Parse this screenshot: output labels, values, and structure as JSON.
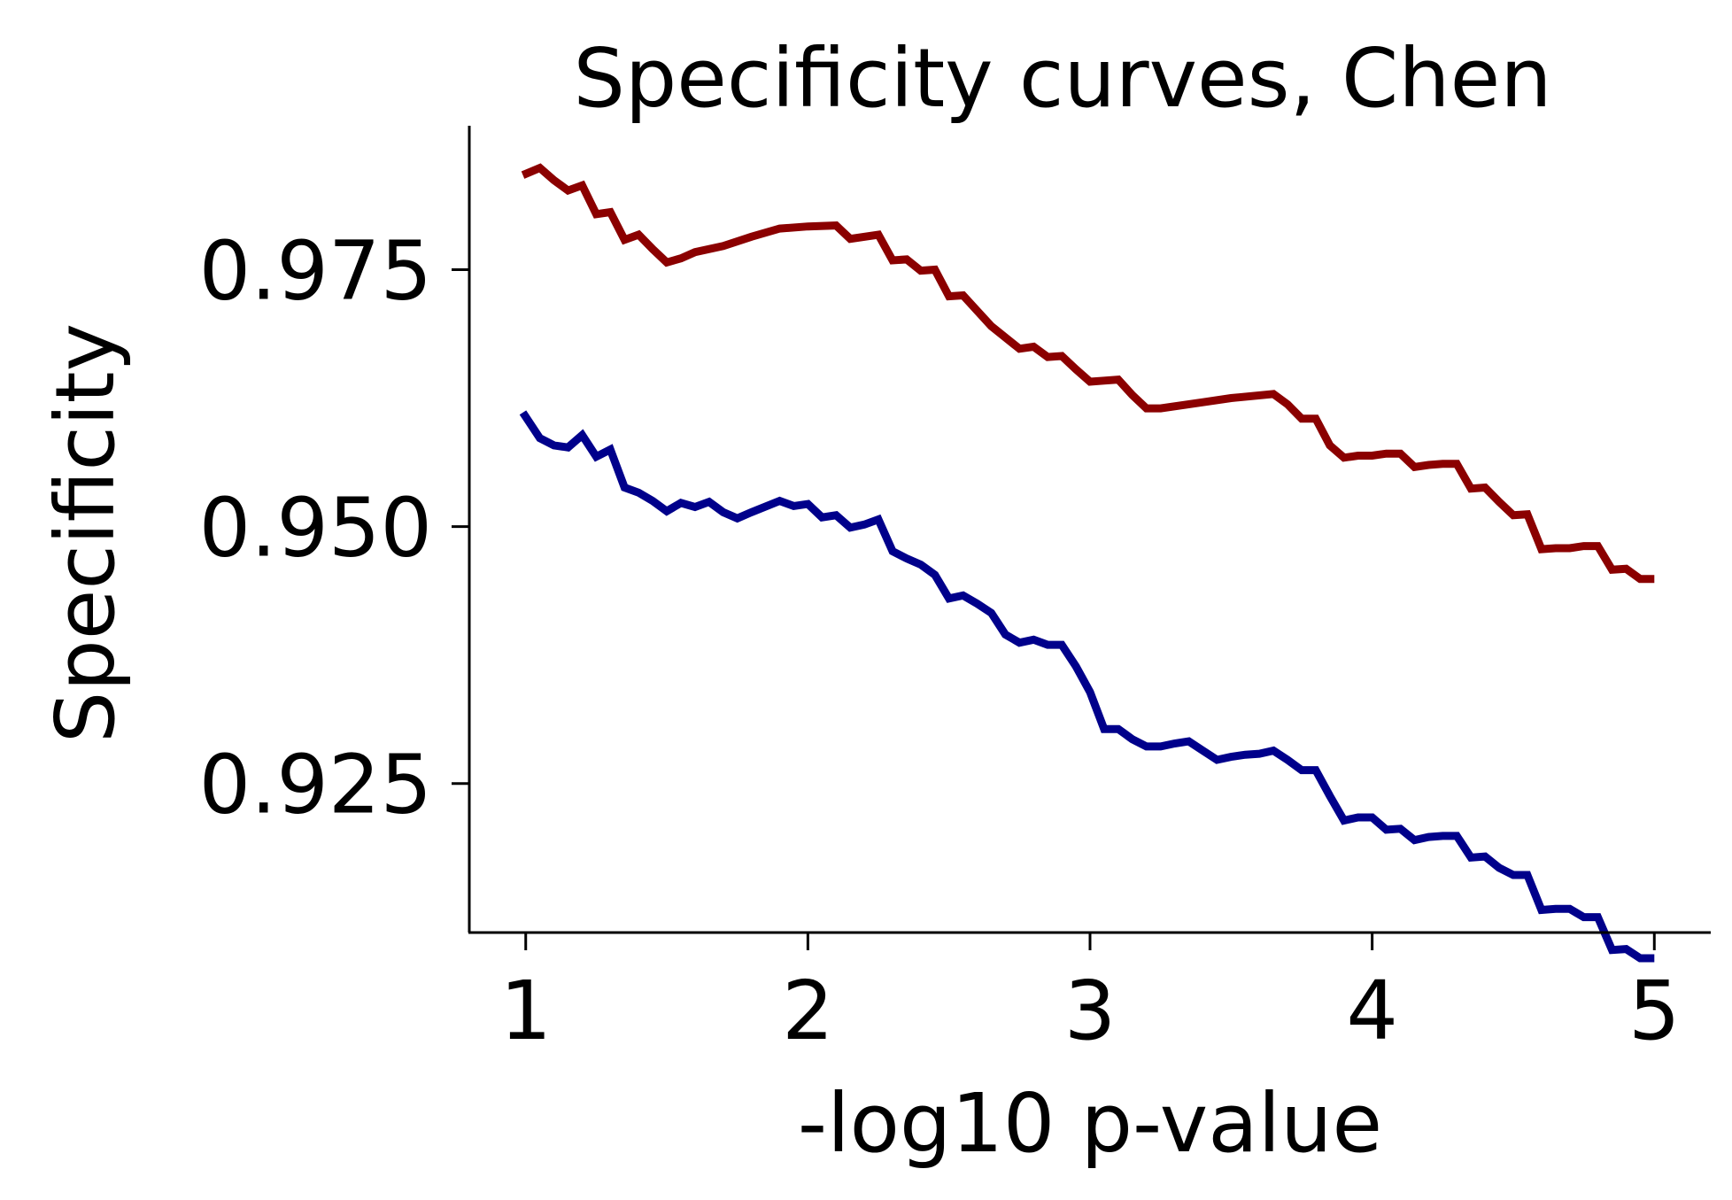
{
  "chart_data": {
    "type": "line",
    "title": "Specificity curves, Chen",
    "xlabel": "-log10 p-value",
    "ylabel": "Specificity",
    "xlim": [
      0.8,
      5.2
    ],
    "ylim": [
      0.9105,
      0.989
    ],
    "xticks": [
      1,
      2,
      3,
      4,
      5
    ],
    "xtick_labels": [
      "1",
      "2",
      "3",
      "4",
      "5"
    ],
    "yticks": [
      0.925,
      0.95,
      0.975
    ],
    "ytick_labels": [
      "0.925",
      "0.950",
      "0.975"
    ],
    "grid": false,
    "series": [
      {
        "color": "#8b0000",
        "points": [
          [
            0.99,
            0.9842
          ],
          [
            1.05,
            0.9849
          ],
          [
            1.1,
            0.9837
          ],
          [
            1.15,
            0.9827
          ],
          [
            1.2,
            0.9832
          ],
          [
            1.25,
            0.9804
          ],
          [
            1.3,
            0.9806
          ],
          [
            1.35,
            0.9779
          ],
          [
            1.4,
            0.9784
          ],
          [
            1.45,
            0.977
          ],
          [
            1.5,
            0.9757
          ],
          [
            1.55,
            0.9761
          ],
          [
            1.6,
            0.9767
          ],
          [
            1.7,
            0.9773
          ],
          [
            1.8,
            0.9782
          ],
          [
            1.9,
            0.979
          ],
          [
            2.0,
            0.9792
          ],
          [
            2.1,
            0.9793
          ],
          [
            2.15,
            0.978
          ],
          [
            2.25,
            0.9784
          ],
          [
            2.3,
            0.9759
          ],
          [
            2.35,
            0.976
          ],
          [
            2.4,
            0.9749
          ],
          [
            2.45,
            0.975
          ],
          [
            2.5,
            0.9724
          ],
          [
            2.55,
            0.9725
          ],
          [
            2.6,
            0.971
          ],
          [
            2.65,
            0.9695
          ],
          [
            2.75,
            0.9673
          ],
          [
            2.8,
            0.9675
          ],
          [
            2.85,
            0.9665
          ],
          [
            2.9,
            0.9666
          ],
          [
            2.95,
            0.9653
          ],
          [
            3.0,
            0.9641
          ],
          [
            3.05,
            0.9642
          ],
          [
            3.1,
            0.9643
          ],
          [
            3.15,
            0.9628
          ],
          [
            3.2,
            0.9615
          ],
          [
            3.25,
            0.9615
          ],
          [
            3.4,
            0.9621
          ],
          [
            3.5,
            0.9625
          ],
          [
            3.65,
            0.9629
          ],
          [
            3.7,
            0.9619
          ],
          [
            3.75,
            0.9605
          ],
          [
            3.8,
            0.9605
          ],
          [
            3.85,
            0.9579
          ],
          [
            3.9,
            0.9567
          ],
          [
            3.95,
            0.9569
          ],
          [
            4.0,
            0.9569
          ],
          [
            4.05,
            0.9571
          ],
          [
            4.1,
            0.9571
          ],
          [
            4.15,
            0.9558
          ],
          [
            4.2,
            0.956
          ],
          [
            4.25,
            0.9561
          ],
          [
            4.3,
            0.9561
          ],
          [
            4.35,
            0.9537
          ],
          [
            4.4,
            0.9538
          ],
          [
            4.45,
            0.9524
          ],
          [
            4.5,
            0.9511
          ],
          [
            4.55,
            0.9512
          ],
          [
            4.6,
            0.9478
          ],
          [
            4.65,
            0.9479
          ],
          [
            4.7,
            0.9479
          ],
          [
            4.75,
            0.9481
          ],
          [
            4.8,
            0.9481
          ],
          [
            4.85,
            0.9458
          ],
          [
            4.9,
            0.9459
          ],
          [
            4.95,
            0.9449
          ],
          [
            5.0,
            0.9449
          ]
        ]
      },
      {
        "color": "#00008b",
        "points": [
          [
            0.99,
            0.9611
          ],
          [
            1.05,
            0.9586
          ],
          [
            1.1,
            0.9579
          ],
          [
            1.15,
            0.9577
          ],
          [
            1.2,
            0.9589
          ],
          [
            1.25,
            0.9568
          ],
          [
            1.3,
            0.9575
          ],
          [
            1.35,
            0.9538
          ],
          [
            1.4,
            0.9533
          ],
          [
            1.45,
            0.9525
          ],
          [
            1.5,
            0.9515
          ],
          [
            1.55,
            0.9523
          ],
          [
            1.6,
            0.9519
          ],
          [
            1.65,
            0.9524
          ],
          [
            1.7,
            0.9514
          ],
          [
            1.75,
            0.9508
          ],
          [
            1.8,
            0.9514
          ],
          [
            1.9,
            0.9525
          ],
          [
            1.95,
            0.952
          ],
          [
            2.0,
            0.9522
          ],
          [
            2.05,
            0.9509
          ],
          [
            2.1,
            0.9511
          ],
          [
            2.15,
            0.9499
          ],
          [
            2.2,
            0.9502
          ],
          [
            2.25,
            0.9507
          ],
          [
            2.3,
            0.9476
          ],
          [
            2.35,
            0.9469
          ],
          [
            2.4,
            0.9463
          ],
          [
            2.45,
            0.9453
          ],
          [
            2.5,
            0.943
          ],
          [
            2.55,
            0.9433
          ],
          [
            2.6,
            0.9425
          ],
          [
            2.65,
            0.9416
          ],
          [
            2.7,
            0.9395
          ],
          [
            2.75,
            0.9387
          ],
          [
            2.8,
            0.939
          ],
          [
            2.85,
            0.9385
          ],
          [
            2.9,
            0.9385
          ],
          [
            2.95,
            0.9364
          ],
          [
            3.0,
            0.9339
          ],
          [
            3.05,
            0.9303
          ],
          [
            3.1,
            0.9303
          ],
          [
            3.15,
            0.9293
          ],
          [
            3.2,
            0.9286
          ],
          [
            3.25,
            0.9286
          ],
          [
            3.3,
            0.9289
          ],
          [
            3.35,
            0.9291
          ],
          [
            3.4,
            0.9282
          ],
          [
            3.45,
            0.9273
          ],
          [
            3.5,
            0.9276
          ],
          [
            3.55,
            0.9278
          ],
          [
            3.6,
            0.9279
          ],
          [
            3.65,
            0.9282
          ],
          [
            3.7,
            0.9273
          ],
          [
            3.75,
            0.9263
          ],
          [
            3.8,
            0.9263
          ],
          [
            3.85,
            0.9238
          ],
          [
            3.9,
            0.9214
          ],
          [
            3.95,
            0.9217
          ],
          [
            4.0,
            0.9217
          ],
          [
            4.05,
            0.9205
          ],
          [
            4.1,
            0.9206
          ],
          [
            4.15,
            0.9195
          ],
          [
            4.2,
            0.9198
          ],
          [
            4.25,
            0.9199
          ],
          [
            4.3,
            0.9199
          ],
          [
            4.35,
            0.9178
          ],
          [
            4.4,
            0.9179
          ],
          [
            4.45,
            0.9168
          ],
          [
            4.5,
            0.9161
          ],
          [
            4.55,
            0.9161
          ],
          [
            4.6,
            0.9127
          ],
          [
            4.65,
            0.9128
          ],
          [
            4.7,
            0.9128
          ],
          [
            4.75,
            0.912
          ],
          [
            4.8,
            0.912
          ],
          [
            4.85,
            0.9088
          ],
          [
            4.9,
            0.9089
          ],
          [
            4.95,
            0.908
          ],
          [
            5.0,
            0.908
          ]
        ]
      }
    ]
  }
}
